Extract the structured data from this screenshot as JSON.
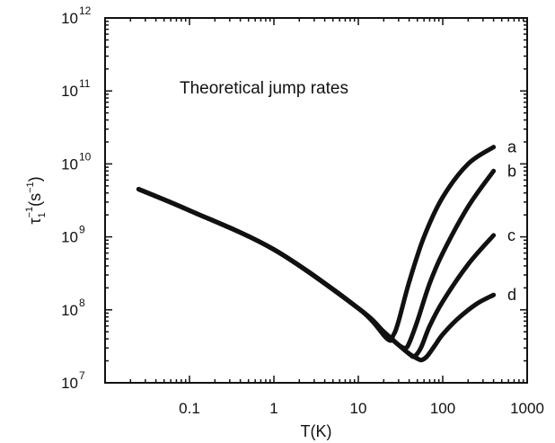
{
  "chart_data": {
    "type": "line",
    "annotation": "Theoretical jump rates",
    "xlabel": "T(K)",
    "ylabel_base": "τ",
    "ylabel_sub": "1",
    "ylabel_sup": "−1",
    "ylabel_unit_open": "(s",
    "ylabel_unit_sup": "−1",
    "ylabel_unit_close": ")",
    "x_scale": "log",
    "y_scale": "log",
    "xlim": [
      0.01,
      1000
    ],
    "ylim": [
      10000000,
      1000000000000
    ],
    "grid": false,
    "x_ticks": [
      {
        "value": 0.1,
        "label": "0.1"
      },
      {
        "value": 1,
        "label": "1"
      },
      {
        "value": 10,
        "label": "10"
      },
      {
        "value": 100,
        "label": "100"
      },
      {
        "value": 1000,
        "label": "1000"
      }
    ],
    "y_ticks": [
      {
        "value": 10000000,
        "base": "10",
        "exp": "7"
      },
      {
        "value": 100000000,
        "base": "10",
        "exp": "8"
      },
      {
        "value": 1000000000,
        "base": "10",
        "exp": "9"
      },
      {
        "value": 10000000000,
        "base": "10",
        "exp": "10"
      },
      {
        "value": 100000000000,
        "base": "10",
        "exp": "11"
      },
      {
        "value": 1000000000000,
        "base": "10",
        "exp": "12"
      }
    ],
    "series": [
      {
        "name": "a",
        "x": [
          0.025,
          0.1,
          1,
          10,
          22,
          26,
          30,
          40,
          60,
          100,
          200,
          400
        ],
        "y": [
          4500000000.0,
          2300000000.0,
          670000000.0,
          105000000.0,
          40000000.0,
          45000000.0,
          70000000.0,
          240000000.0,
          1000000000.0,
          3500000000.0,
          10000000000.0,
          17000000000.0
        ]
      },
      {
        "name": "b",
        "x": [
          0.025,
          0.1,
          1,
          10,
          20,
          30,
          36,
          40,
          50,
          70,
          100,
          200,
          400
        ],
        "y": [
          4500000000.0,
          2300000000.0,
          670000000.0,
          105000000.0,
          50000000.0,
          33000000.0,
          30000000.0,
          35000000.0,
          70000000.0,
          230000000.0,
          600000000.0,
          2600000000.0,
          8000000000.0
        ]
      },
      {
        "name": "c",
        "x": [
          0.025,
          0.1,
          1,
          10,
          20,
          30,
          40,
          46,
          55,
          70,
          100,
          200,
          400
        ],
        "y": [
          4500000000.0,
          2300000000.0,
          670000000.0,
          105000000.0,
          50000000.0,
          33000000.0,
          25000000.0,
          23000000.0,
          30000000.0,
          60000000.0,
          130000000.0,
          420000000.0,
          1050000000.0
        ]
      },
      {
        "name": "d",
        "x": [
          0.025,
          0.1,
          1,
          10,
          20,
          30,
          40,
          50,
          56,
          65,
          80,
          100,
          150,
          250,
          400
        ],
        "y": [
          4500000000.0,
          2300000000.0,
          670000000.0,
          105000000.0,
          50000000.0,
          33000000.0,
          25000000.0,
          21500000.0,
          20500000.0,
          23000000.0,
          32000000.0,
          46000000.0,
          75000000.0,
          120000000.0,
          160000000.0
        ]
      }
    ]
  }
}
